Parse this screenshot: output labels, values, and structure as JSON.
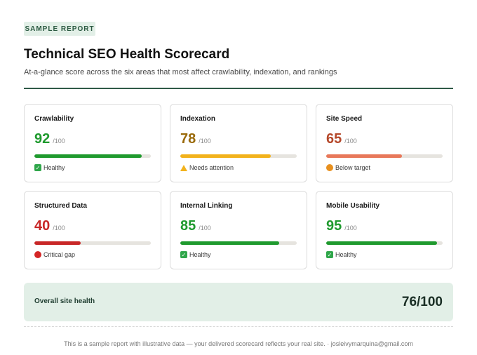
{
  "header": {
    "badge": "SAMPLE REPORT",
    "title": "Technical SEO Health Scorecard",
    "subtitle": "At-a-glance score across the six areas that most affect crawlability, indexation, and rankings"
  },
  "cards": [
    {
      "label": "Crawlability",
      "score": "92",
      "max": "/100",
      "fill": 0.92,
      "color": "#1f9a2e",
      "status": "Healthy",
      "icon": "check-icon"
    },
    {
      "label": "Indexation",
      "score": "78",
      "max": "/100",
      "fill": 0.78,
      "color": "#f2b21c",
      "text_color": "#9a6a0a",
      "status": "Needs attention",
      "icon": "warning-icon"
    },
    {
      "label": "Site Speed",
      "score": "65",
      "max": "/100",
      "fill": 0.65,
      "color": "#e8785a",
      "text_color": "#b5482a",
      "status": "Below target",
      "icon": "orange-circle-icon"
    },
    {
      "label": "Structured Data",
      "score": "40",
      "max": "/100",
      "fill": 0.4,
      "color": "#c82727",
      "status": "Critical gap",
      "icon": "red-circle-icon"
    },
    {
      "label": "Internal Linking",
      "score": "85",
      "max": "/100",
      "fill": 0.85,
      "color": "#1f9a2e",
      "status": "Healthy",
      "icon": "check-icon"
    },
    {
      "label": "Mobile Usability",
      "score": "95",
      "max": "/100",
      "fill": 0.95,
      "color": "#1f9a2e",
      "status": "Healthy",
      "icon": "check-icon"
    }
  ],
  "overall": {
    "label": "Overall site health",
    "score": "76/100"
  },
  "footer": {
    "text": "This is a sample report with illustrative data — your delivered scorecard reflects your real site. · josleivymarquina@gmail.com"
  }
}
